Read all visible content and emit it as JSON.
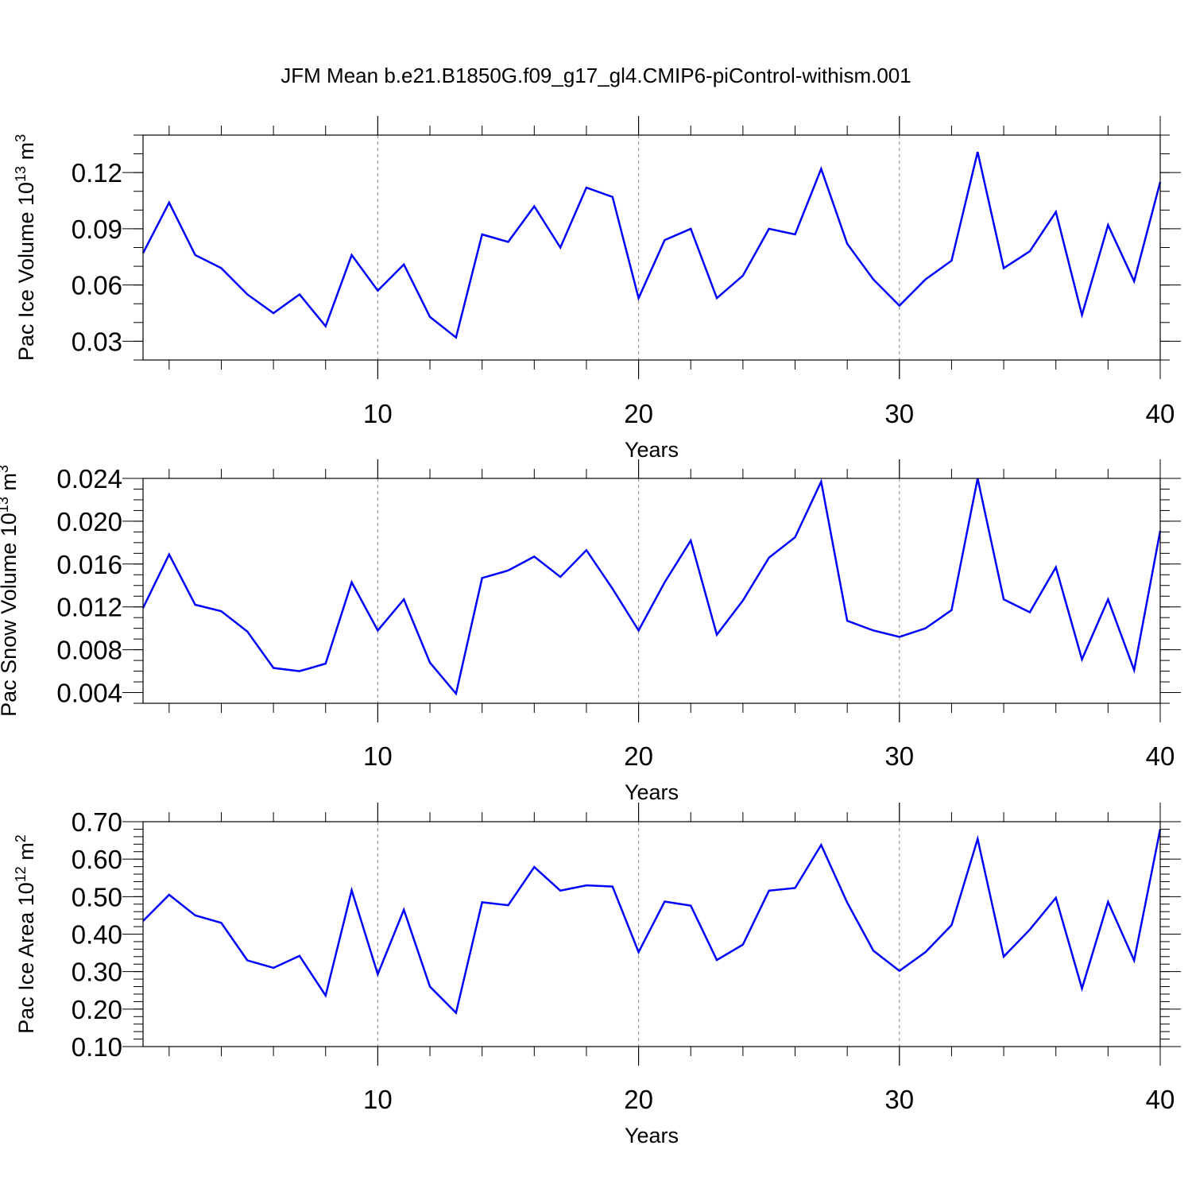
{
  "title": "JFM Mean b.e21.B1850G.f09_g17_gl4.CMIP6-piControl-withism.001",
  "chart_data": [
    {
      "type": "line",
      "ylabel_main": "Pac Ice Volume 10",
      "ylabel_exp": "13",
      "ylabel_unit": "m",
      "ylabel_unit_exp": "3",
      "xlabel": "Years",
      "xlim": [
        1,
        40
      ],
      "ylim": [
        0.02,
        0.14
      ],
      "yticks": [
        0.03,
        0.06,
        0.09,
        0.12
      ],
      "yticklabels": [
        "0.03",
        "0.06",
        "0.09",
        "0.12"
      ],
      "yminor": 0.01,
      "xticks": [
        10,
        20,
        30,
        40
      ],
      "xticklabels": [
        "10",
        "20",
        "30",
        "40"
      ],
      "grid_x": [
        10,
        20,
        30
      ],
      "line_color": "#0000ff",
      "x": [
        1,
        2,
        3,
        4,
        5,
        6,
        7,
        8,
        9,
        10,
        11,
        12,
        13,
        14,
        15,
        16,
        17,
        18,
        19,
        20,
        21,
        22,
        23,
        24,
        25,
        26,
        27,
        28,
        29,
        30,
        31,
        32,
        33,
        34,
        35,
        36,
        37,
        38,
        39,
        40
      ],
      "values": [
        0.077,
        0.104,
        0.076,
        0.069,
        0.055,
        0.045,
        0.055,
        0.038,
        0.076,
        0.057,
        0.071,
        0.043,
        0.032,
        0.087,
        0.083,
        0.102,
        0.08,
        0.112,
        0.107,
        0.053,
        0.084,
        0.09,
        0.053,
        0.065,
        0.09,
        0.087,
        0.122,
        0.082,
        0.063,
        0.049,
        0.063,
        0.073,
        0.131,
        0.069,
        0.078,
        0.099,
        0.044,
        0.092,
        0.062,
        0.115
      ]
    },
    {
      "type": "line",
      "ylabel_main": "Pac Snow Volume 10",
      "ylabel_exp": "13",
      "ylabel_unit": "m",
      "ylabel_unit_exp": "3",
      "xlabel": "Years",
      "xlim": [
        1,
        40
      ],
      "ylim": [
        0.003,
        0.024
      ],
      "yticks": [
        0.004,
        0.008,
        0.012,
        0.016,
        0.02,
        0.024
      ],
      "yticklabels": [
        "0.004",
        "0.008",
        "0.012",
        "0.016",
        "0.020",
        "0.024"
      ],
      "yminor": 0.001,
      "xticks": [
        10,
        20,
        30,
        40
      ],
      "xticklabels": [
        "10",
        "20",
        "30",
        "40"
      ],
      "grid_x": [
        10,
        20,
        30
      ],
      "line_color": "#0000ff",
      "x": [
        1,
        2,
        3,
        4,
        5,
        6,
        7,
        8,
        9,
        10,
        11,
        12,
        13,
        14,
        15,
        16,
        17,
        18,
        19,
        20,
        21,
        22,
        23,
        24,
        25,
        26,
        27,
        28,
        29,
        30,
        31,
        32,
        33,
        34,
        35,
        36,
        37,
        38,
        39,
        40
      ],
      "values": [
        0.0119,
        0.0169,
        0.0122,
        0.0116,
        0.0097,
        0.0063,
        0.006,
        0.0067,
        0.0143,
        0.0098,
        0.0127,
        0.0068,
        0.0039,
        0.0147,
        0.0154,
        0.0167,
        0.0148,
        0.0173,
        0.0137,
        0.0098,
        0.0143,
        0.0182,
        0.0094,
        0.0126,
        0.0166,
        0.0185,
        0.0237,
        0.0107,
        0.0098,
        0.0092,
        0.01,
        0.0117,
        0.024,
        0.0127,
        0.0115,
        0.0157,
        0.0071,
        0.0127,
        0.0061,
        0.0191
      ]
    },
    {
      "type": "line",
      "ylabel_main": "Pac Ice Area 10",
      "ylabel_exp": "12",
      "ylabel_unit": "m",
      "ylabel_unit_exp": "2",
      "xlabel": "Years",
      "xlim": [
        1,
        40
      ],
      "ylim": [
        0.1,
        0.7
      ],
      "yticks": [
        0.1,
        0.2,
        0.3,
        0.4,
        0.5,
        0.6,
        0.7
      ],
      "yticklabels": [
        "0.10",
        "0.20",
        "0.30",
        "0.40",
        "0.50",
        "0.60",
        "0.70"
      ],
      "yminor": 0.02,
      "xticks": [
        10,
        20,
        30,
        40
      ],
      "xticklabels": [
        "10",
        "20",
        "30",
        "40"
      ],
      "grid_x": [
        10,
        20,
        30
      ],
      "line_color": "#0000ff",
      "x": [
        1,
        2,
        3,
        4,
        5,
        6,
        7,
        8,
        9,
        10,
        11,
        12,
        13,
        14,
        15,
        16,
        17,
        18,
        19,
        20,
        21,
        22,
        23,
        24,
        25,
        26,
        27,
        28,
        29,
        30,
        31,
        32,
        33,
        34,
        35,
        36,
        37,
        38,
        39,
        40
      ],
      "values": [
        0.435,
        0.505,
        0.45,
        0.43,
        0.33,
        0.31,
        0.342,
        0.236,
        0.517,
        0.293,
        0.465,
        0.26,
        0.19,
        0.485,
        0.477,
        0.579,
        0.516,
        0.53,
        0.527,
        0.352,
        0.487,
        0.476,
        0.331,
        0.372,
        0.516,
        0.523,
        0.638,
        0.484,
        0.356,
        0.302,
        0.352,
        0.424,
        0.654,
        0.34,
        0.412,
        0.497,
        0.255,
        0.486,
        0.33,
        0.68
      ]
    }
  ]
}
